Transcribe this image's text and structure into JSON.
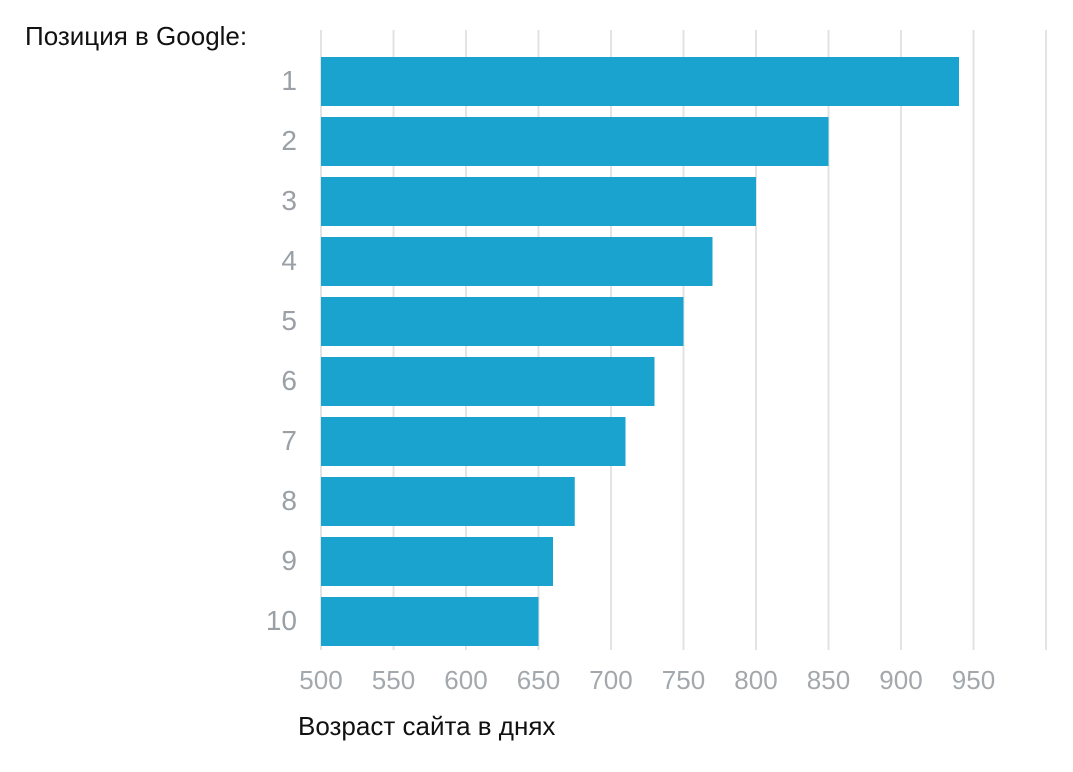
{
  "chart_data": {
    "type": "bar",
    "orientation": "horizontal",
    "y_title": "Позиция в Google:",
    "x_title": "Возраст сайта в днях",
    "categories": [
      "1",
      "2",
      "3",
      "4",
      "5",
      "6",
      "7",
      "8",
      "9",
      "10"
    ],
    "values": [
      940,
      850,
      800,
      770,
      750,
      730,
      710,
      675,
      660,
      650
    ],
    "color": "#1aa3cf",
    "xlim": [
      500,
      1000
    ],
    "xticks": [
      500,
      550,
      600,
      650,
      700,
      750,
      800,
      850,
      900,
      950
    ],
    "grid": true
  }
}
